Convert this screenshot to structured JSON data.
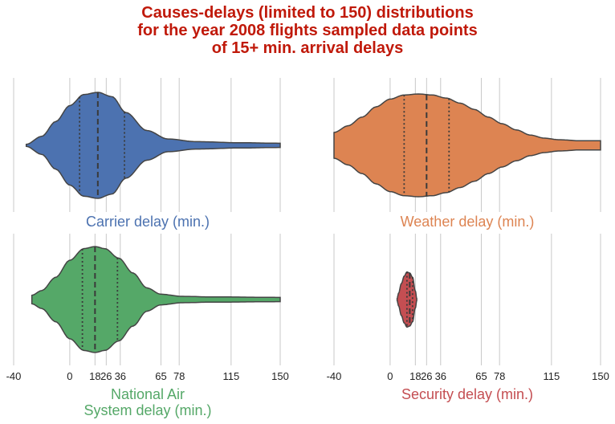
{
  "title_lines": [
    "Causes-delays (limited to 150) distributions",
    "for the year 2008 flights sampled data points",
    "of 15+ min. arrival delays"
  ],
  "chart_data": [
    {
      "type": "violin",
      "label_lines": [
        "Carrier delay (min.)"
      ],
      "color": "#4c72b0",
      "xlim": [
        -40,
        150
      ],
      "ticks": [
        -40,
        0,
        18,
        26,
        36,
        65,
        78,
        115,
        150
      ],
      "tick_labels": [
        "-40",
        "0",
        "18",
        "26",
        "36",
        "65",
        "78",
        "115",
        "150"
      ],
      "grid": true,
      "quartiles": [
        7,
        20,
        39
      ],
      "density": [
        [
          -31,
          0.02
        ],
        [
          -20,
          0.17
        ],
        [
          -10,
          0.45
        ],
        [
          0,
          0.75
        ],
        [
          10,
          0.96
        ],
        [
          20,
          1.0
        ],
        [
          30,
          0.92
        ],
        [
          40,
          0.62
        ],
        [
          55,
          0.28
        ],
        [
          70,
          0.12
        ],
        [
          90,
          0.07
        ],
        [
          120,
          0.05
        ],
        [
          150,
          0.04
        ]
      ]
    },
    {
      "type": "violin",
      "label_lines": [
        "Weather delay (min.)"
      ],
      "color": "#dd8452",
      "xlim": [
        -40,
        150
      ],
      "ticks": [
        -40,
        0,
        18,
        26,
        36,
        65,
        78,
        115,
        150
      ],
      "tick_labels": [
        "-40",
        "0",
        "18",
        "26",
        "36",
        "65",
        "78",
        "115",
        "150"
      ],
      "grid": true,
      "quartiles": [
        10,
        26,
        42
      ],
      "density": [
        [
          -40,
          0.25
        ],
        [
          -30,
          0.38
        ],
        [
          -20,
          0.55
        ],
        [
          -10,
          0.75
        ],
        [
          0,
          0.9
        ],
        [
          10,
          0.98
        ],
        [
          20,
          1.0
        ],
        [
          30,
          0.98
        ],
        [
          40,
          0.92
        ],
        [
          50,
          0.82
        ],
        [
          60,
          0.7
        ],
        [
          70,
          0.55
        ],
        [
          80,
          0.42
        ],
        [
          90,
          0.3
        ],
        [
          100,
          0.2
        ],
        [
          110,
          0.14
        ],
        [
          120,
          0.11
        ],
        [
          135,
          0.09
        ],
        [
          150,
          0.09
        ]
      ]
    },
    {
      "type": "violin",
      "label_lines": [
        "National Air",
        "System delay (min.)"
      ],
      "color": "#55a868",
      "xlim": [
        -40,
        150
      ],
      "ticks": [
        -40,
        0,
        18,
        26,
        36,
        65,
        78,
        115,
        150
      ],
      "tick_labels": [
        "-40",
        "0",
        "18",
        "26",
        "36",
        "65",
        "78",
        "115",
        "150"
      ],
      "grid": true,
      "quartiles": [
        9,
        18,
        34
      ],
      "density": [
        [
          -27,
          0.08
        ],
        [
          -20,
          0.17
        ],
        [
          -10,
          0.42
        ],
        [
          0,
          0.74
        ],
        [
          10,
          0.96
        ],
        [
          18,
          1.0
        ],
        [
          25,
          0.96
        ],
        [
          35,
          0.78
        ],
        [
          45,
          0.5
        ],
        [
          55,
          0.22
        ],
        [
          65,
          0.1
        ],
        [
          80,
          0.06
        ],
        [
          100,
          0.05
        ],
        [
          150,
          0.04
        ]
      ]
    },
    {
      "type": "violin",
      "label_lines": [
        "Security delay (min.)"
      ],
      "color": "#c44e52",
      "xlim": [
        -40,
        150
      ],
      "ticks": [
        -40,
        0,
        18,
        26,
        36,
        65,
        78,
        115,
        150
      ],
      "tick_labels": [
        "-40",
        "0",
        "18",
        "26",
        "36",
        "65",
        "78",
        "115",
        "150"
      ],
      "grid": true,
      "quartiles": [
        12,
        14,
        16
      ],
      "density": [
        [
          5,
          0.02
        ],
        [
          6,
          0.12
        ],
        [
          8,
          0.3
        ],
        [
          10,
          0.44
        ],
        [
          12,
          0.52
        ],
        [
          14,
          0.5
        ],
        [
          16,
          0.42
        ],
        [
          18,
          0.16
        ],
        [
          19,
          0.02
        ]
      ]
    }
  ]
}
